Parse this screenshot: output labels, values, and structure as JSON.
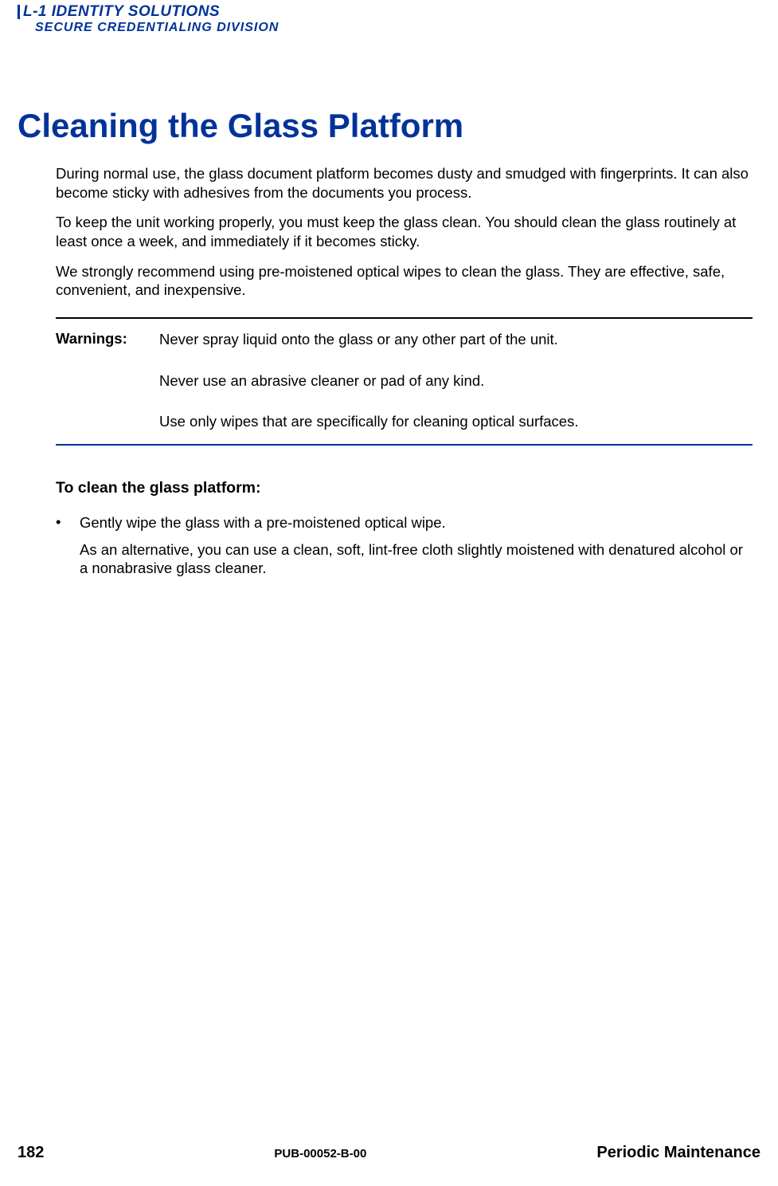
{
  "logo": {
    "line1": "L-1 IDENTITY SOLUTIONS",
    "line2": "SECURE CREDENTIALING DIVISION"
  },
  "colors": {
    "heading": "#003399",
    "border_top": "#000000",
    "border_bottom": "#003399",
    "text": "#000000",
    "background": "#ffffff"
  },
  "heading": "Cleaning the Glass Platform",
  "paragraphs": [
    "During normal use, the glass document platform becomes dusty and smudged with fingerprints. It can also become sticky with adhesives from the documents you process.",
    "To keep the unit working properly, you must keep the glass clean. You should clean the glass routinely at least once a week, and immediately if it becomes sticky.",
    "We strongly recommend using pre-moistened optical wipes to clean the glass. They are effective, safe, convenient, and inexpensive."
  ],
  "warnings": {
    "label": "Warnings:",
    "items": [
      "Never spray liquid onto the glass or any other part of the unit.",
      "Never use an abrasive cleaner or pad of any kind.",
      "Use only wipes that are specifically for cleaning optical surfaces."
    ]
  },
  "subheading": "To clean the glass platform:",
  "bullet": {
    "mark": "•",
    "text": "Gently wipe the glass with a pre-moistened optical wipe.",
    "follow": "As an alternative, you can use a clean, soft, lint-free cloth slightly moistened with denatured alcohol or a nonabrasive glass cleaner."
  },
  "footer": {
    "page_number": "182",
    "pub_id": "PUB-00052-B-00",
    "section": "Periodic Maintenance"
  }
}
